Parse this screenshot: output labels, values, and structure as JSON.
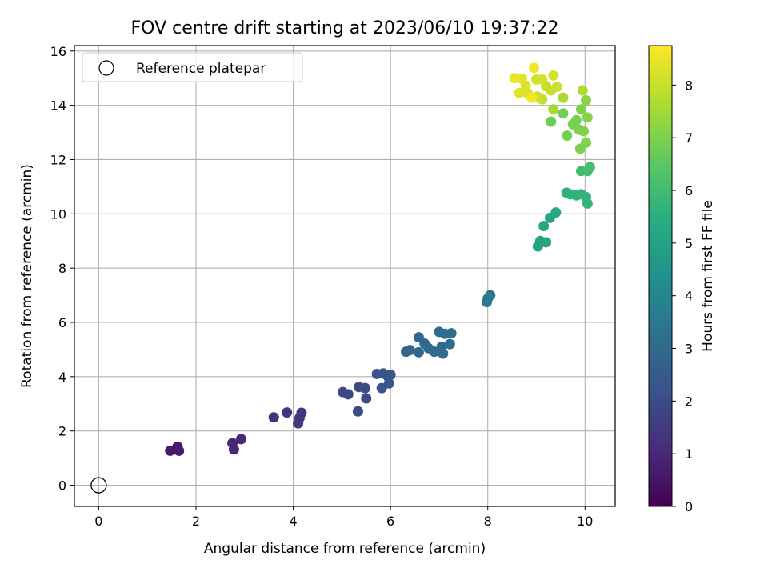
{
  "chart_data": {
    "type": "scatter",
    "title": "FOV centre drift starting at 2023/06/10 19:37:22",
    "xlabel": "Angular distance from reference (arcmin)",
    "ylabel": "Rotation from reference (arcmin)",
    "xlim": [
      -0.5,
      10.62
    ],
    "ylim": [
      -0.78,
      16.2
    ],
    "xticks": [
      "0",
      "2",
      "4",
      "6",
      "8",
      "10"
    ],
    "yticks": [
      "0",
      "2",
      "4",
      "6",
      "8",
      "10",
      "12",
      "14",
      "16"
    ],
    "grid": true,
    "legend": {
      "position": "top-left",
      "entries": [
        "Reference platepar"
      ]
    },
    "colorbar": {
      "label": "Hours from first FF file",
      "range": [
        0,
        8.75
      ],
      "ticks": [
        "0",
        "1",
        "2",
        "3",
        "4",
        "5",
        "6",
        "7",
        "8"
      ],
      "colormap": "viridis"
    },
    "reference_point": {
      "x": 0,
      "y": 0,
      "color": "none",
      "edgecolor": "#000000"
    },
    "series": [
      {
        "points": [
          {
            "x": 1.47,
            "y": 1.27,
            "h": 0.6
          },
          {
            "x": 1.62,
            "y": 1.42,
            "h": 0.62
          },
          {
            "x": 1.65,
            "y": 1.27,
            "h": 0.64
          },
          {
            "x": 2.75,
            "y": 1.55,
            "h": 0.95
          },
          {
            "x": 2.78,
            "y": 1.32,
            "h": 0.98
          },
          {
            "x": 2.93,
            "y": 1.7,
            "h": 1.0
          },
          {
            "x": 3.6,
            "y": 2.5,
            "h": 1.25
          },
          {
            "x": 3.87,
            "y": 2.68,
            "h": 1.3
          },
          {
            "x": 4.1,
            "y": 2.28,
            "h": 1.38
          },
          {
            "x": 4.13,
            "y": 2.48,
            "h": 1.4
          },
          {
            "x": 4.17,
            "y": 2.67,
            "h": 1.42
          },
          {
            "x": 5.02,
            "y": 3.43,
            "h": 1.85
          },
          {
            "x": 5.13,
            "y": 3.35,
            "h": 1.88
          },
          {
            "x": 5.35,
            "y": 3.62,
            "h": 1.92
          },
          {
            "x": 5.48,
            "y": 3.58,
            "h": 1.95
          },
          {
            "x": 5.5,
            "y": 3.2,
            "h": 1.97
          },
          {
            "x": 5.33,
            "y": 2.72,
            "h": 1.98
          },
          {
            "x": 5.72,
            "y": 4.1,
            "h": 2.25
          },
          {
            "x": 5.85,
            "y": 4.12,
            "h": 2.28
          },
          {
            "x": 5.95,
            "y": 4.0,
            "h": 2.3
          },
          {
            "x": 6.0,
            "y": 4.07,
            "h": 2.32
          },
          {
            "x": 5.82,
            "y": 3.58,
            "h": 2.34
          },
          {
            "x": 5.97,
            "y": 3.75,
            "h": 2.36
          },
          {
            "x": 6.32,
            "y": 4.92,
            "h": 2.85
          },
          {
            "x": 6.4,
            "y": 4.98,
            "h": 2.88
          },
          {
            "x": 6.58,
            "y": 4.9,
            "h": 2.9
          },
          {
            "x": 6.58,
            "y": 5.45,
            "h": 2.92
          },
          {
            "x": 6.7,
            "y": 5.22,
            "h": 2.95
          },
          {
            "x": 6.78,
            "y": 5.05,
            "h": 2.98
          },
          {
            "x": 6.9,
            "y": 4.92,
            "h": 3.0
          },
          {
            "x": 7.0,
            "y": 5.65,
            "h": 3.02
          },
          {
            "x": 7.05,
            "y": 5.1,
            "h": 3.04
          },
          {
            "x": 7.12,
            "y": 5.58,
            "h": 3.06
          },
          {
            "x": 7.08,
            "y": 4.85,
            "h": 3.08
          },
          {
            "x": 7.22,
            "y": 5.2,
            "h": 3.1
          },
          {
            "x": 7.25,
            "y": 5.6,
            "h": 3.12
          },
          {
            "x": 7.98,
            "y": 6.75,
            "h": 3.5
          },
          {
            "x": 8.0,
            "y": 6.88,
            "h": 3.52
          },
          {
            "x": 8.05,
            "y": 7.0,
            "h": 3.55
          },
          {
            "x": 9.03,
            "y": 8.8,
            "h": 5.05
          },
          {
            "x": 9.08,
            "y": 9.0,
            "h": 5.1
          },
          {
            "x": 9.2,
            "y": 8.95,
            "h": 5.12
          },
          {
            "x": 9.15,
            "y": 9.55,
            "h": 5.15
          },
          {
            "x": 9.28,
            "y": 9.85,
            "h": 5.2
          },
          {
            "x": 9.4,
            "y": 10.05,
            "h": 5.25
          },
          {
            "x": 9.62,
            "y": 10.78,
            "h": 5.6
          },
          {
            "x": 9.7,
            "y": 10.72,
            "h": 5.62
          },
          {
            "x": 9.82,
            "y": 10.68,
            "h": 5.65
          },
          {
            "x": 9.92,
            "y": 10.72,
            "h": 5.68
          },
          {
            "x": 10.02,
            "y": 10.62,
            "h": 5.7
          },
          {
            "x": 10.05,
            "y": 10.38,
            "h": 5.72
          },
          {
            "x": 9.92,
            "y": 11.58,
            "h": 6.0
          },
          {
            "x": 10.05,
            "y": 11.58,
            "h": 6.02
          },
          {
            "x": 10.1,
            "y": 11.72,
            "h": 6.05
          },
          {
            "x": 9.3,
            "y": 13.4,
            "h": 6.8
          },
          {
            "x": 9.55,
            "y": 13.7,
            "h": 6.85
          },
          {
            "x": 9.63,
            "y": 12.88,
            "h": 6.88
          },
          {
            "x": 9.75,
            "y": 13.3,
            "h": 6.9
          },
          {
            "x": 9.82,
            "y": 13.45,
            "h": 6.92
          },
          {
            "x": 9.88,
            "y": 13.1,
            "h": 6.95
          },
          {
            "x": 9.9,
            "y": 12.4,
            "h": 6.97
          },
          {
            "x": 9.92,
            "y": 13.85,
            "h": 7.0
          },
          {
            "x": 9.97,
            "y": 13.05,
            "h": 7.02
          },
          {
            "x": 10.02,
            "y": 12.62,
            "h": 7.05
          },
          {
            "x": 10.05,
            "y": 13.55,
            "h": 7.08
          },
          {
            "x": 10.02,
            "y": 14.18,
            "h": 7.2
          },
          {
            "x": 9.55,
            "y": 14.28,
            "h": 7.6
          },
          {
            "x": 9.95,
            "y": 14.55,
            "h": 7.65
          },
          {
            "x": 9.35,
            "y": 13.85,
            "h": 7.55
          },
          {
            "x": 9.12,
            "y": 14.22,
            "h": 7.9
          },
          {
            "x": 9.2,
            "y": 14.7,
            "h": 7.95
          },
          {
            "x": 9.3,
            "y": 14.55,
            "h": 8.0
          },
          {
            "x": 9.42,
            "y": 14.68,
            "h": 8.05
          },
          {
            "x": 9.02,
            "y": 14.32,
            "h": 8.1
          },
          {
            "x": 9.0,
            "y": 14.95,
            "h": 8.15
          },
          {
            "x": 9.12,
            "y": 14.95,
            "h": 8.18
          },
          {
            "x": 9.35,
            "y": 15.1,
            "h": 8.2
          },
          {
            "x": 8.82,
            "y": 14.45,
            "h": 8.25
          },
          {
            "x": 8.78,
            "y": 14.72,
            "h": 8.3
          },
          {
            "x": 8.65,
            "y": 14.45,
            "h": 8.35
          },
          {
            "x": 8.7,
            "y": 14.98,
            "h": 8.4
          },
          {
            "x": 8.55,
            "y": 15.0,
            "h": 8.5
          },
          {
            "x": 8.95,
            "y": 15.38,
            "h": 8.6
          },
          {
            "x": 8.9,
            "y": 14.28,
            "h": 8.65
          }
        ]
      }
    ]
  }
}
